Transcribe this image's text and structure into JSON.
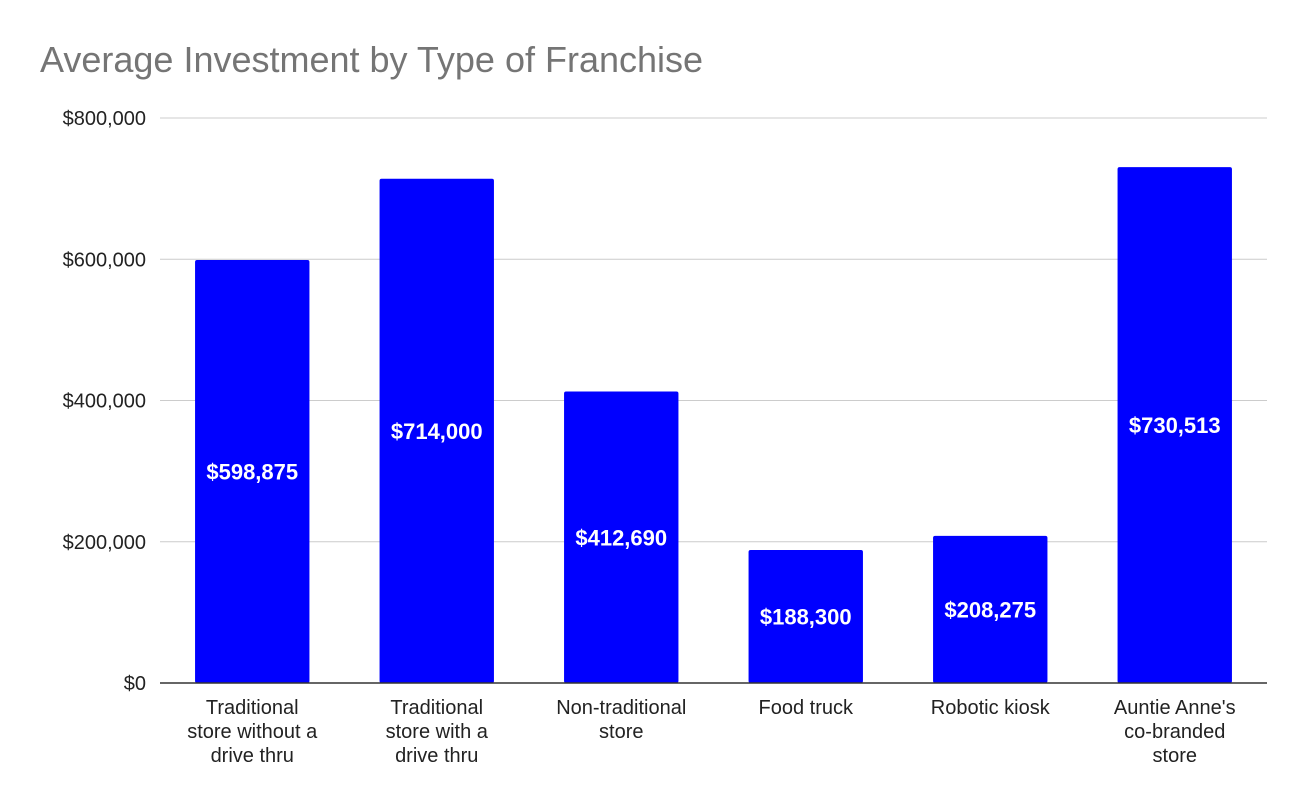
{
  "chart_data": {
    "type": "bar",
    "title": "Average Investment by Type of Franchise",
    "xlabel": "",
    "ylabel": "",
    "categories": [
      [
        "Traditional",
        "store without a",
        "drive thru"
      ],
      [
        "Traditional",
        "store with a",
        "drive thru"
      ],
      [
        "Non-traditional",
        "store"
      ],
      [
        "Food truck"
      ],
      [
        "Robotic kiosk"
      ],
      [
        "Auntie Anne's",
        "co-branded",
        "store"
      ]
    ],
    "values": [
      598875,
      714000,
      412690,
      188300,
      208275,
      730513
    ],
    "data_labels": [
      "$598,875",
      "$714,000",
      "$412,690",
      "$188,300",
      "$208,275",
      "$730,513"
    ],
    "ylim": [
      0,
      800000
    ],
    "yticks": [
      0,
      200000,
      400000,
      600000,
      800000
    ],
    "ytick_labels": [
      "$0",
      "$200,000",
      "$400,000",
      "$600,000",
      "$800,000"
    ],
    "grid": true,
    "legend": "none",
    "colors": {
      "bar": "#0000ff",
      "title": "#757575",
      "grid": "#cccccc"
    }
  }
}
